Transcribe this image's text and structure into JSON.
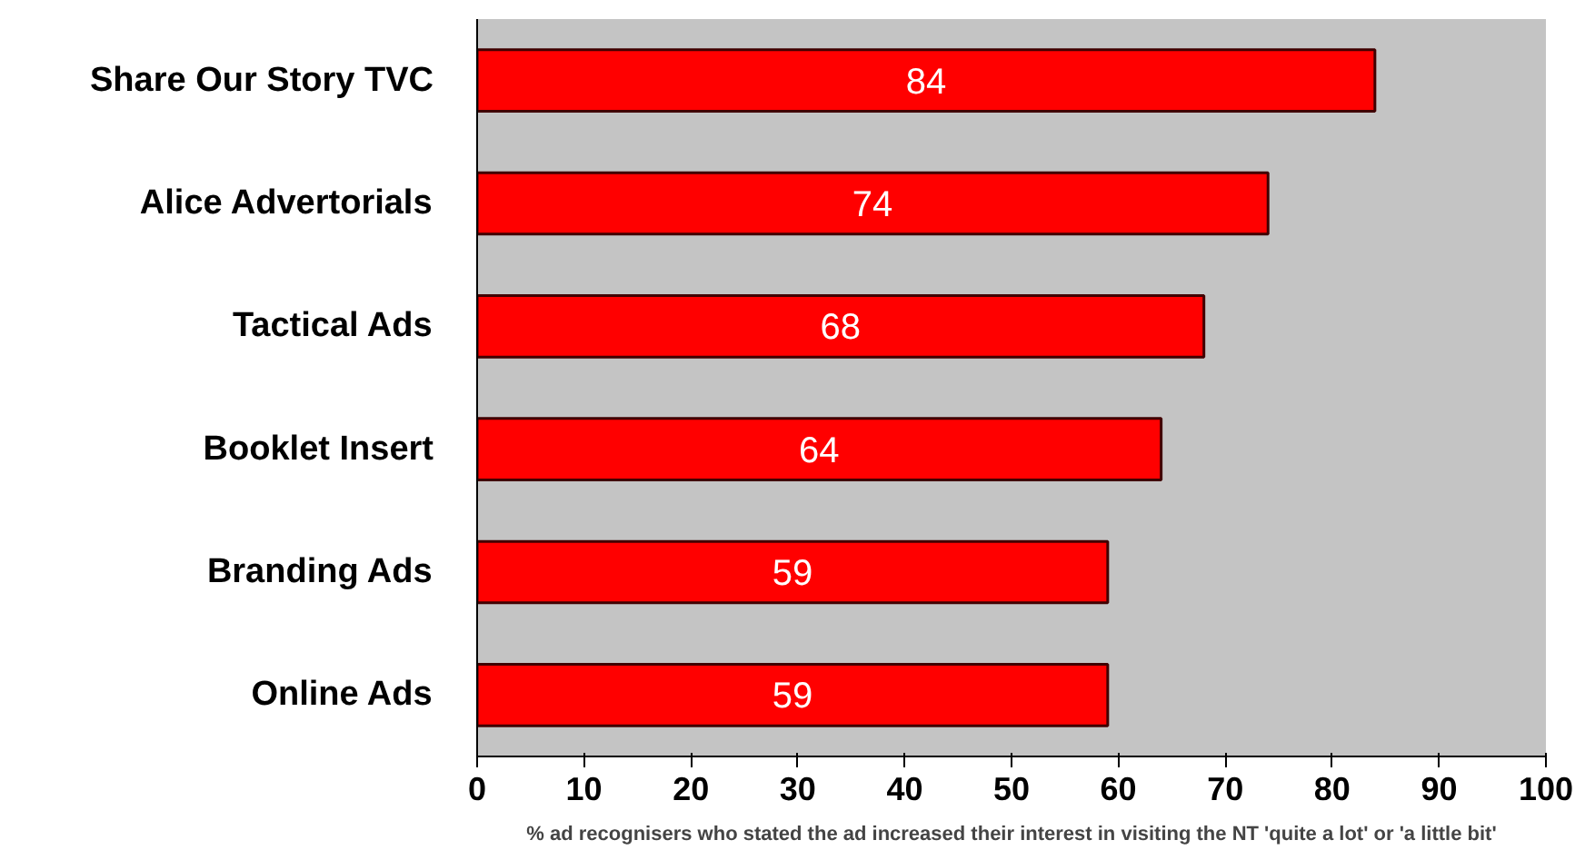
{
  "chart_data": {
    "type": "bar",
    "orientation": "horizontal",
    "categories": [
      "Share Our Story TVC",
      "Alice Advertorials",
      "Tactical Ads",
      "Booklet Insert",
      "Branding Ads",
      "Online Ads"
    ],
    "values": [
      84,
      74,
      68,
      64,
      59,
      59
    ],
    "color": "#ff0000",
    "xlim": [
      0,
      100
    ],
    "xticks": [
      0,
      10,
      20,
      30,
      40,
      50,
      60,
      70,
      80,
      90,
      100
    ],
    "xlabel": "% ad recognisers who stated the ad increased their interest in visiting the NT 'quite a lot' or 'a little bit'",
    "data_labels": true
  }
}
